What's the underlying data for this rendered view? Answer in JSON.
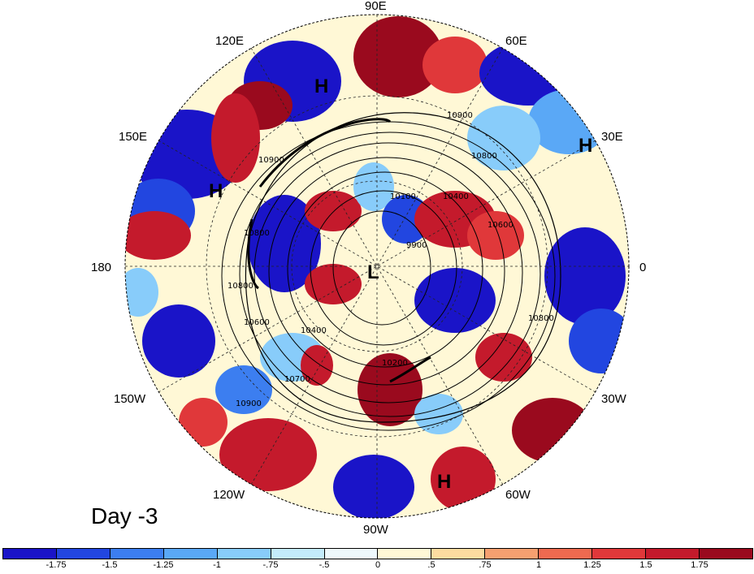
{
  "panel_label": "Day -3",
  "longitude_labels": {
    "lon_90e": "90E",
    "lon_60e": "60E",
    "lon_30e": "30E",
    "lon_0": "0",
    "lon_30w": "30W",
    "lon_60w": "60W",
    "lon_90w": "90W",
    "lon_120w": "120W",
    "lon_150w": "150W",
    "lon_180": "180",
    "lon_150e": "150E",
    "lon_120e": "120E"
  },
  "pressure_centers": {
    "h_siberia": "H",
    "h_pacific": "H",
    "h_europe": "H",
    "h_atlantic": "H",
    "l_pole": "L"
  },
  "contour_labels": [
    "10900",
    "10800",
    "10600",
    "10400",
    "10200",
    "10100",
    "10700",
    "10900",
    "10800",
    "10400",
    "10600",
    "10800",
    "10900",
    "10800",
    "9900"
  ],
  "colorbar": {
    "ticks": [
      "-1.75",
      "-1.5",
      "-1.25",
      "-1",
      "-.75",
      "-.5",
      "0",
      ".5",
      ".75",
      "1",
      "1.25",
      "1.5",
      "1.75"
    ],
    "colors": [
      "#1a14c8",
      "#2246e0",
      "#3c7ef0",
      "#5aa8f6",
      "#88ccfa",
      "#c4ecfc",
      "#eef9fc",
      "#fff8d6",
      "#fddca0",
      "#f6a070",
      "#ee6a50",
      "#e0383a",
      "#c41a2c",
      "#9a0a1e"
    ]
  }
}
